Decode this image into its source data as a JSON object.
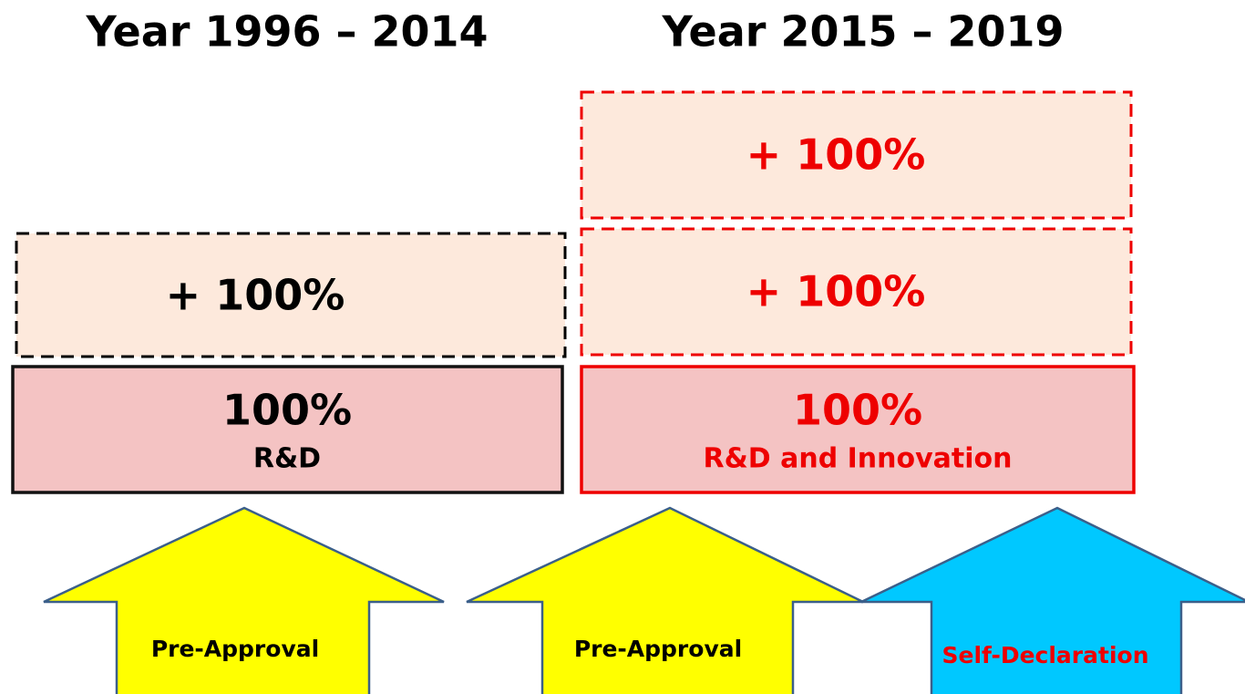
{
  "columns": [
    {
      "title": "Year 1996 – 2014",
      "extra_boxes": [
        "+ 100%"
      ],
      "base": {
        "value": "100%",
        "label": "R&D"
      },
      "arrows": [
        "Pre-Approval"
      ]
    },
    {
      "title": "Year 2015 – 2019",
      "extra_boxes": [
        "+ 100%",
        "+ 100%"
      ],
      "base": {
        "value": "100%",
        "label": "R&D and Innovation"
      },
      "arrows": [
        "Pre-Approval",
        "Self-Declaration"
      ]
    }
  ]
}
